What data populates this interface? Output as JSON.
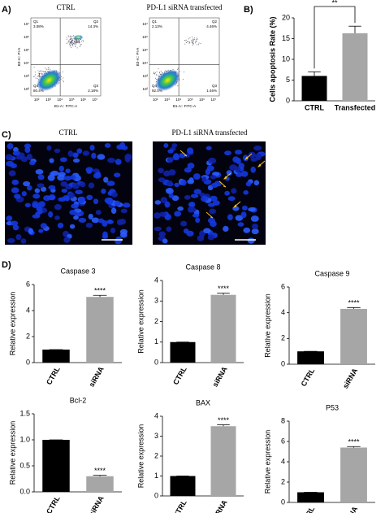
{
  "panel_labels": [
    "A)",
    "B)",
    "C)",
    "D)"
  ],
  "flow": [
    {
      "title": "CTRL",
      "x_label": "B1-A:: FITC-A",
      "y_label": "B3-A:: PI-A",
      "ticks": [
        "10²",
        "10³",
        "10⁴",
        "10⁵",
        "10⁶",
        "10⁷"
      ],
      "quadrants": [
        {
          "name": "Q1",
          "value": "3.08%"
        },
        {
          "name": "Q2",
          "value": "14.3%"
        },
        {
          "name": "Q3",
          "value": "2.18%"
        },
        {
          "name": "Q4",
          "value": "80.4%"
        }
      ]
    },
    {
      "title": "PD-L1 siRNA transfected",
      "x_label": "B1-A:: FITC-A",
      "y_label": "B3-A:: PI-A",
      "ticks": [
        "10²",
        "10³",
        "10⁴",
        "10⁵",
        "10⁶",
        "10⁷"
      ],
      "quadrants": [
        {
          "name": "Q1",
          "value": "2.13%"
        },
        {
          "name": "Q2",
          "value": "4.46%"
        },
        {
          "name": "Q3",
          "value": "1.46%"
        },
        {
          "name": "Q4",
          "value": "92.0%"
        }
      ]
    }
  ],
  "images": {
    "titles": [
      "CTRL",
      "PD-L1 siRNA transfected"
    ]
  },
  "chart_data": [
    {
      "type": "bar",
      "ylabel": "Cells apoptosis Rate (%)",
      "categories": [
        "CTRL",
        "Transfected"
      ],
      "values": [
        6.0,
        16.3
      ],
      "errors": [
        1.0,
        1.7
      ],
      "colors": [
        "#000000",
        "#a6a6a6"
      ],
      "ylim": [
        0,
        20
      ],
      "yticks": [
        0,
        5,
        10,
        15,
        20
      ],
      "significance": "**",
      "significance_bracket": true
    },
    {
      "type": "bar",
      "title": "Caspase 3",
      "ylabel": "Relative expression",
      "categories": [
        "CTRL",
        "siRNA"
      ],
      "values": [
        1.0,
        5.05
      ],
      "errors": [
        0,
        0.12
      ],
      "colors": [
        "#000000",
        "#a6a6a6"
      ],
      "ylim": [
        0,
        6
      ],
      "yticks": [
        0,
        2,
        4,
        6
      ],
      "significance": "****"
    },
    {
      "type": "bar",
      "title": "Caspase 8",
      "ylabel": "Relative expression",
      "categories": [
        "CTRL",
        "siRNA"
      ],
      "values": [
        1.0,
        3.3
      ],
      "errors": [
        0,
        0.08
      ],
      "colors": [
        "#000000",
        "#a6a6a6"
      ],
      "ylim": [
        0,
        4
      ],
      "yticks": [
        0,
        1,
        2,
        3,
        4
      ],
      "significance": "****"
    },
    {
      "type": "bar",
      "title": "Caspase 9",
      "ylabel": "Relative expression",
      "categories": [
        "CTRL",
        "siRNA"
      ],
      "values": [
        1.0,
        4.3
      ],
      "errors": [
        0,
        0.1
      ],
      "colors": [
        "#000000",
        "#a6a6a6"
      ],
      "ylim": [
        0,
        6
      ],
      "yticks": [
        0,
        2,
        4,
        6
      ],
      "significance": "****"
    },
    {
      "type": "bar",
      "title": "Bcl-2",
      "ylabel": "Relative expression",
      "categories": [
        "CTRL",
        "siRNA"
      ],
      "values": [
        1.0,
        0.3
      ],
      "errors": [
        0,
        0.02
      ],
      "colors": [
        "#000000",
        "#a6a6a6"
      ],
      "ylim": [
        0,
        1.5
      ],
      "yticks": [
        {
          "value": 0,
          "label": "0.0"
        },
        0.5,
        {
          "value": 1,
          "label": "1.0"
        },
        1.5
      ],
      "significance": "****"
    },
    {
      "type": "bar",
      "title": "BAX",
      "ylabel": "Relative expression",
      "categories": [
        "CTRL",
        "siRNA"
      ],
      "values": [
        1.0,
        3.5
      ],
      "errors": [
        0,
        0.07
      ],
      "colors": [
        "#000000",
        "#a6a6a6"
      ],
      "ylim": [
        0,
        4
      ],
      "yticks": [
        0,
        1,
        2,
        3,
        4
      ],
      "significance": "****"
    },
    {
      "type": "bar",
      "title": "P53",
      "ylabel": "Relative expression",
      "categories": [
        "CTRL",
        "siRNA"
      ],
      "values": [
        1.0,
        5.4
      ],
      "errors": [
        0,
        0.1
      ],
      "colors": [
        "#000000",
        "#a6a6a6"
      ],
      "ylim": [
        0,
        8
      ],
      "yticks": [
        0,
        2,
        4,
        6,
        8
      ],
      "significance": "****"
    }
  ]
}
